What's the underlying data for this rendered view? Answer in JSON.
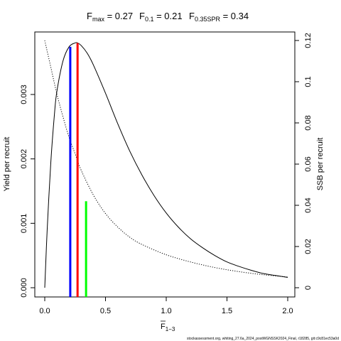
{
  "chart_data": {
    "type": "line",
    "title_parts": {
      "fmax_base": "F",
      "fmax_sub": "max",
      "fmax_val": " = 0.27",
      "f01_base": "F",
      "f01_sub": "0.1",
      "f01_val": " = 0.21",
      "fspr_base": "F",
      "fspr_sub": "0.35SPR",
      "fspr_val": " = 0.34"
    },
    "xlabel": {
      "base": "F",
      "sub": "1−3"
    },
    "ylabel_left": "Yield per recruit",
    "ylabel_right": "SSB per recruit",
    "footer": "stockassessment.org, whiting_27.6a_2024_postWGNSSK2024_Final, r18285, git:c9c81ec53a0d",
    "xlim": [
      0,
      2
    ],
    "ylim_left": [
      0,
      0.0038
    ],
    "ylim_right": [
      0,
      0.12
    ],
    "x_ticks": [
      0,
      0.5,
      1.0,
      1.5,
      2.0
    ],
    "x_tick_labels": [
      "0.0",
      "0.5",
      "1.0",
      "1.5",
      "2.0"
    ],
    "y_left_ticks": [
      0,
      0.001,
      0.002,
      0.003
    ],
    "y_left_tick_labels": [
      "0.000",
      "0.001",
      "0.002",
      "0.003"
    ],
    "y_right_ticks": [
      0,
      0.02,
      0.04,
      0.06,
      0.08,
      0.1,
      0.12
    ],
    "y_right_tick_labels": [
      "0",
      "0.02",
      "0.04",
      "0.06",
      "0.08",
      "0.1",
      "0.12"
    ],
    "series": [
      {
        "name": "Yield per recruit",
        "axis": "left",
        "style": "solid",
        "color": "#000000",
        "x": [
          0,
          0.02,
          0.05,
          0.08,
          0.1,
          0.15,
          0.2,
          0.25,
          0.27,
          0.3,
          0.35,
          0.4,
          0.5,
          0.6,
          0.7,
          0.8,
          0.9,
          1.0,
          1.1,
          1.2,
          1.3,
          1.4,
          1.5,
          1.6,
          1.7,
          1.8,
          1.9,
          2.0
        ],
        "y": [
          0,
          0.0009,
          0.00195,
          0.0027,
          0.00305,
          0.00352,
          0.00374,
          0.0038,
          0.0038,
          0.00376,
          0.00364,
          0.00346,
          0.00302,
          0.00255,
          0.00212,
          0.00175,
          0.00143,
          0.00116,
          0.00094,
          0.00076,
          0.00062,
          0.0005,
          0.0004,
          0.00033,
          0.00027,
          0.00022,
          0.00019,
          0.00016
        ]
      },
      {
        "name": "SSB per recruit",
        "axis": "right",
        "style": "dotted",
        "color": "#000000",
        "x": [
          0,
          0.05,
          0.1,
          0.15,
          0.2,
          0.25,
          0.3,
          0.4,
          0.5,
          0.6,
          0.7,
          0.8,
          1.0,
          1.2,
          1.4,
          1.6,
          1.8,
          2.0
        ],
        "y": [
          0.12,
          0.107,
          0.094,
          0.083,
          0.073,
          0.065,
          0.057,
          0.045,
          0.036,
          0.0295,
          0.0245,
          0.021,
          0.016,
          0.0125,
          0.0098,
          0.0078,
          0.0063,
          0.0052
        ]
      }
    ],
    "reference_lines": [
      {
        "label": "F0.1",
        "x": 0.21,
        "y": 0.00374,
        "axis": "left",
        "color": "#0000ff"
      },
      {
        "label": "Fmax",
        "x": 0.27,
        "y": 0.0038,
        "axis": "left",
        "color": "#ff0000"
      },
      {
        "label": "F0.35SPR",
        "x": 0.34,
        "y": 0.042,
        "axis": "right",
        "color": "#00ff00"
      }
    ],
    "grid": false,
    "legend": "none"
  }
}
